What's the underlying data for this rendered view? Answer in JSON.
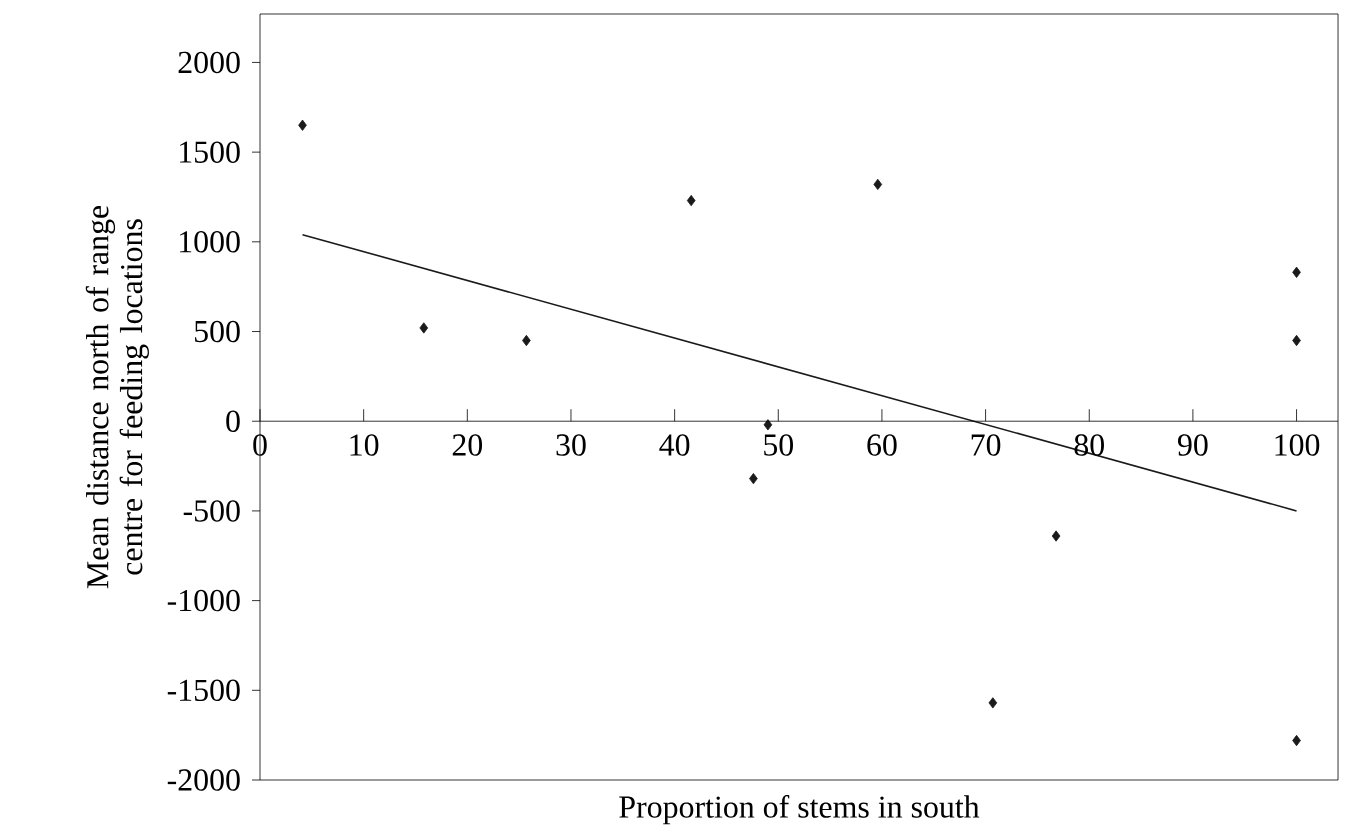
{
  "chart_data": {
    "type": "scatter",
    "xlabel": "Proportion of stems in south",
    "ylabel": "Mean distance north of range centre for feeding locations",
    "xlim": [
      0,
      104
    ],
    "ylim": [
      -2000,
      2270
    ],
    "xticks": [
      0,
      10,
      20,
      30,
      40,
      50,
      60,
      70,
      80,
      90,
      100
    ],
    "yticks": [
      -2000,
      -1500,
      -1000,
      -500,
      0,
      500,
      1000,
      1500,
      2000
    ],
    "grid": false,
    "marker": "diamond",
    "series": [
      {
        "color": "#1a1a1a",
        "x": [
          4.1,
          15.8,
          25.7,
          41.6,
          47.6,
          49,
          59.6,
          70.7,
          76.8,
          100,
          100,
          100
        ],
        "values": [
          1650,
          520,
          450,
          1230,
          -320,
          -20,
          1320,
          -1570,
          -640,
          830,
          450,
          -1780
        ]
      },
      {
        "type": "line",
        "marker": "none",
        "color": "#1a1a1a",
        "x": [
          4.1,
          100
        ],
        "values": [
          1040,
          -500
        ]
      }
    ]
  }
}
